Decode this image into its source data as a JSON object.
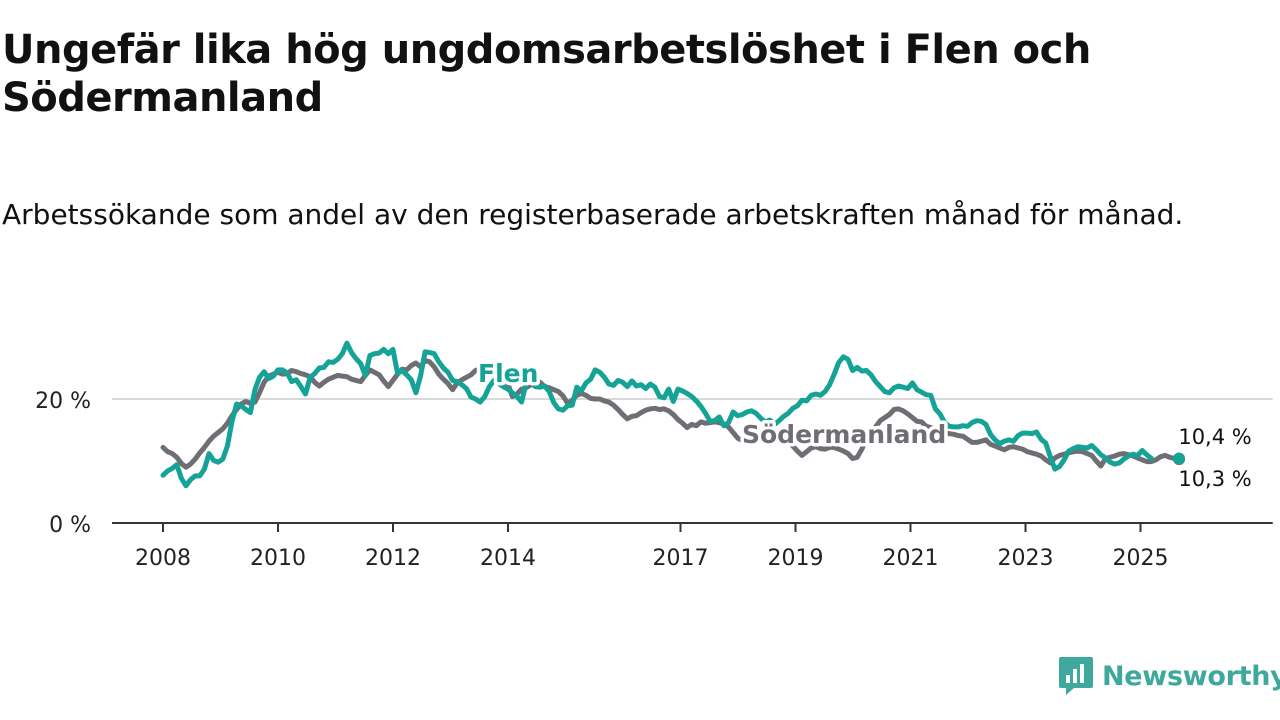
{
  "title": "Ungefär lika hög ungdomsarbetslöshet i Flen och Södermanland",
  "subtitle": "Arbetssökande som andel av den registerbaserade arbetskraften månad för månad.",
  "brand": {
    "name": "Newsworthy",
    "color": "#3ea89c",
    "icon": "newsworthy-logo-icon"
  },
  "chart_data": {
    "type": "line",
    "x_start_year": 2008,
    "x_end_year": 2025.67,
    "xlim": [
      2008,
      2027.3
    ],
    "ylim": [
      0,
      30
    ],
    "y_ticks": [
      0,
      20
    ],
    "y_tick_labels": [
      "0 %",
      "20 %"
    ],
    "x_ticks": [
      2008,
      2010,
      2012,
      2014,
      2017,
      2019,
      2021,
      2023,
      2025
    ],
    "x_tick_labels": [
      "2008",
      "2010",
      "2012",
      "2014",
      "2017",
      "2019",
      "2021",
      "2023",
      "2025"
    ],
    "series": [
      {
        "name": "Södermanland",
        "label": "Södermanland",
        "color": "#6e6e74",
        "end_label": "10,3 %",
        "values": [
          12.2,
          11.5,
          11.2,
          10.6,
          9.6,
          9.0,
          9.5,
          10.3,
          11.3,
          12.2,
          13.2,
          14.0,
          14.6,
          15.2,
          16.1,
          17.3,
          18.3,
          19.2,
          19.6,
          19.3,
          19.5,
          21.0,
          22.7,
          23.7,
          24.0,
          24.3,
          24.0,
          24.1,
          24.6,
          24.4,
          24.1,
          23.9,
          23.6,
          22.7,
          22.1,
          22.7,
          23.2,
          23.5,
          23.8,
          23.7,
          23.6,
          23.2,
          23.0,
          22.8,
          23.8,
          24.7,
          24.3,
          23.9,
          22.9,
          22.0,
          23.0,
          24.0,
          24.8,
          24.7,
          25.4,
          25.8,
          25.2,
          26.2,
          26.0,
          25.2,
          24.0,
          23.2,
          22.5,
          21.5,
          22.6,
          23.1,
          23.5,
          23.9,
          24.6,
          24.9,
          24.9,
          24.8,
          24.6,
          24.0,
          23.5,
          22.5,
          20.4,
          20.8,
          21.6,
          21.8,
          22.3,
          22.2,
          22.7,
          22.0,
          21.8,
          21.5,
          21.2,
          20.5,
          19.3,
          19.8,
          20.6,
          20.9,
          20.6,
          20.1,
          20.0,
          20.0,
          19.7,
          19.5,
          19.0,
          18.3,
          17.5,
          16.8,
          17.2,
          17.3,
          17.8,
          18.2,
          18.4,
          18.5,
          18.3,
          18.4,
          18.1,
          17.5,
          16.7,
          16.1,
          15.4,
          15.9,
          15.7,
          16.3,
          16.1,
          16.2,
          16.3,
          16.2,
          15.9,
          15.5,
          14.6,
          13.7,
          13.3,
          13.7,
          13.7,
          13.9,
          14.1,
          14.2,
          13.8,
          13.9,
          14.0,
          13.8,
          13.2,
          12.4,
          11.6,
          10.9,
          11.5,
          12.1,
          12.3,
          12.0,
          11.9,
          12.2,
          12.2,
          11.9,
          11.6,
          11.2,
          10.4,
          10.6,
          11.9,
          13.5,
          14.6,
          15.5,
          16.5,
          17.0,
          17.5,
          18.3,
          18.4,
          18.1,
          17.6,
          17.0,
          16.4,
          16.3,
          15.6,
          15.4,
          15.1,
          14.9,
          14.6,
          14.4,
          14.3,
          14.1,
          14.0,
          13.5,
          13.0,
          13.0,
          13.2,
          13.4,
          12.7,
          12.4,
          12.1,
          11.8,
          12.2,
          12.3,
          12.1,
          11.9,
          11.5,
          11.3,
          11.1,
          10.8,
          10.2,
          9.7,
          10.5,
          10.9,
          11.1,
          11.3,
          11.5,
          11.6,
          11.5,
          11.2,
          10.9,
          10.0,
          9.2,
          10.4,
          10.6,
          10.8,
          11.1,
          11.2,
          11.0,
          10.8,
          10.5,
          10.2,
          9.9,
          9.9,
          10.2,
          10.7,
          10.9,
          10.6,
          10.4,
          10.3
        ]
      },
      {
        "name": "Flen",
        "label": "Flen",
        "color": "#14a396",
        "end_label": "10,4 %",
        "values": [
          7.7,
          8.4,
          8.8,
          9.4,
          7.2,
          6.0,
          7.0,
          7.6,
          7.6,
          8.7,
          11.2,
          10.1,
          9.8,
          10.3,
          12.4,
          16.4,
          19.2,
          18.9,
          18.3,
          17.8,
          21.5,
          23.5,
          24.4,
          23.3,
          23.7,
          24.7,
          24.7,
          24.2,
          22.8,
          23.1,
          22.0,
          20.8,
          23.5,
          24.1,
          25.0,
          25.1,
          26.0,
          25.9,
          26.4,
          27.3,
          29.0,
          27.5,
          26.5,
          25.7,
          23.8,
          27.0,
          27.3,
          27.4,
          28.0,
          27.3,
          28.0,
          24.2,
          24.6,
          23.9,
          23.1,
          21.0,
          23.7,
          27.6,
          27.5,
          27.3,
          26.0,
          25.0,
          24.3,
          23.0,
          22.8,
          22.3,
          21.7,
          20.3,
          20.0,
          19.5,
          20.4,
          22.0,
          23.0,
          22.5,
          22.0,
          21.6,
          21.0,
          20.4,
          19.5,
          22.6,
          23.0,
          22.0,
          21.9,
          22.1,
          21.2,
          19.4,
          18.4,
          18.2,
          18.9,
          19.0,
          21.9,
          21.3,
          22.6,
          23.2,
          24.7,
          24.3,
          23.5,
          22.4,
          22.2,
          23.0,
          22.7,
          22.0,
          22.9,
          22.1,
          22.3,
          21.7,
          22.4,
          21.9,
          20.4,
          20.2,
          21.6,
          19.6,
          21.6,
          21.3,
          20.9,
          20.4,
          19.7,
          18.8,
          17.7,
          16.4,
          16.5,
          17.1,
          15.7,
          16.2,
          17.9,
          17.3,
          17.5,
          17.9,
          18.1,
          17.7,
          16.9,
          16.3,
          16.6,
          15.9,
          16.5,
          17.2,
          17.7,
          18.5,
          18.9,
          19.8,
          19.7,
          20.6,
          20.8,
          20.6,
          21.2,
          22.3,
          24.0,
          25.9,
          26.8,
          26.4,
          24.6,
          25.1,
          24.5,
          24.6,
          23.9,
          22.8,
          22.0,
          21.2,
          21.0,
          21.8,
          22.1,
          21.9,
          21.7,
          22.6,
          21.5,
          21.1,
          20.7,
          20.6,
          18.4,
          17.6,
          16.2,
          15.6,
          15.5,
          15.5,
          15.7,
          15.6,
          16.2,
          16.5,
          16.4,
          15.9,
          14.3,
          13.4,
          12.8,
          13.2,
          13.4,
          13.2,
          14.1,
          14.5,
          14.5,
          14.4,
          14.7,
          13.5,
          12.9,
          10.7,
          8.7,
          9.1,
          10.2,
          11.6,
          12.0,
          12.3,
          12.2,
          12.1,
          12.5,
          11.8,
          11.0,
          10.5,
          9.8,
          9.5,
          9.7,
          10.3,
          10.8,
          11.1,
          10.9,
          11.7,
          11.0,
          10.4
        ]
      }
    ]
  }
}
